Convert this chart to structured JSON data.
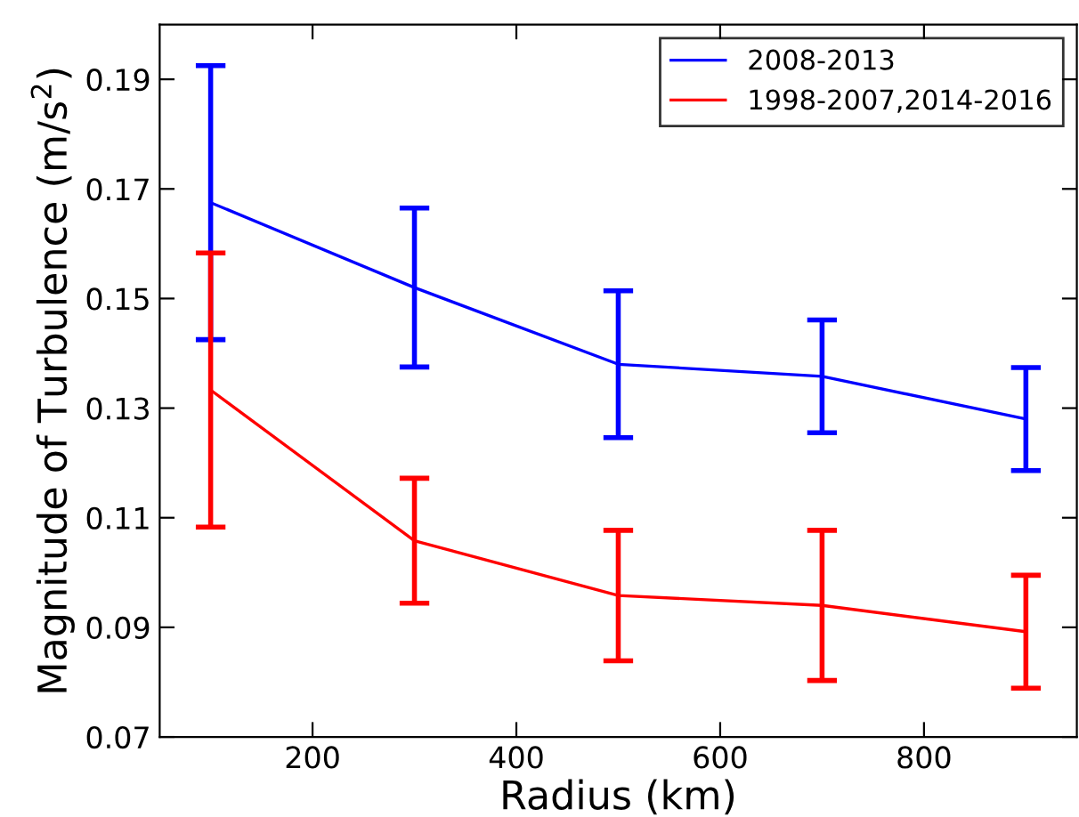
{
  "chart_data": {
    "type": "line",
    "xlabel": "Radius (km)",
    "ylabel": "Magnitude of Turbulence (m/s$^{2}$)",
    "x": [
      100,
      300,
      500,
      700,
      900
    ],
    "series": [
      {
        "name": "2008-2013",
        "color": "#0000ff",
        "values": [
          0.1675,
          0.152,
          0.138,
          0.1358,
          0.128
        ],
        "errors": [
          0.025,
          0.0145,
          0.0134,
          0.0103,
          0.0094
        ]
      },
      {
        "name": "1998-2007,2014-2016",
        "color": "#ff0000",
        "values": [
          0.1333,
          0.1058,
          0.0958,
          0.094,
          0.0892
        ],
        "errors": [
          0.025,
          0.0114,
          0.0119,
          0.0137,
          0.0103
        ]
      }
    ],
    "xlim": [
      50,
      950
    ],
    "xticks": [
      200,
      400,
      600,
      800
    ],
    "ylim": [
      0.07,
      0.2
    ],
    "yticks": [
      0.07,
      0.09,
      0.11,
      0.13,
      0.15,
      0.17,
      0.19
    ],
    "legend": "top right",
    "grid": false
  }
}
